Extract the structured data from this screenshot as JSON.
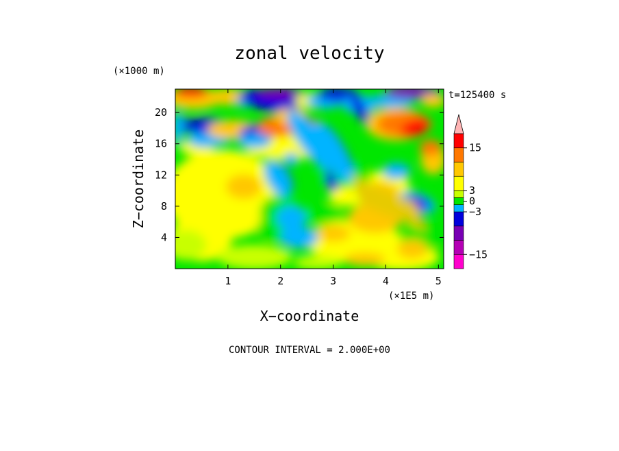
{
  "chart_data": {
    "type": "heatmap",
    "title": "zonal velocity",
    "xlabel": "X−coordinate",
    "ylabel": "Z−coordinate",
    "x_unit": "(×1E5 m)",
    "y_unit": "(×1000 m)",
    "time_label": "t=125400 s",
    "footer": "CONTOUR INTERVAL = 2.000E+00",
    "xlim": [
      0,
      5.1
    ],
    "ylim": [
      0,
      23
    ],
    "x_ticks": [
      "1",
      "2",
      "3",
      "4",
      "5"
    ],
    "x_tick_values": [
      1,
      2,
      3,
      4,
      5
    ],
    "y_ticks": [
      "4",
      "8",
      "12",
      "16",
      "20"
    ],
    "y_tick_values": [
      4,
      8,
      12,
      16,
      20
    ],
    "colorbar": {
      "levels": [
        -19,
        -15,
        -11,
        -7,
        -3,
        -1,
        1,
        3,
        7,
        11,
        15,
        19
      ],
      "colors": [
        "#ff00cc",
        "#b400b4",
        "#7800b4",
        "#0000dc",
        "#00b4ff",
        "#00e600",
        "#c8ff00",
        "#ffff00",
        "#ffc800",
        "#ff7800",
        "#ff0000",
        "#ff8080",
        "#ffb4b4"
      ],
      "tick_labels": [
        "15",
        "3",
        "0",
        "−3",
        "−15"
      ],
      "tick_values": [
        15,
        3,
        0,
        -3,
        -15
      ]
    }
  }
}
